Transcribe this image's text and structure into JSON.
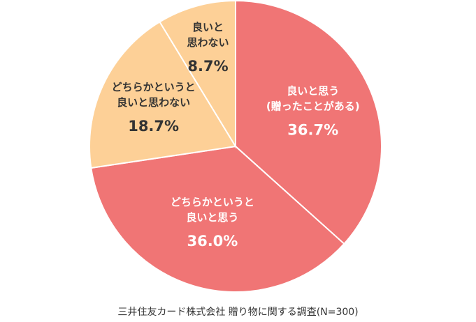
{
  "chart_data": {
    "type": "pie",
    "categories": [
      "良いと思う\n(贈ったことがある)",
      "どちらかというと\n良いと思う",
      "どちらかというと\n良いと思わない",
      "良いと\n思わない"
    ],
    "values": [
      36.7,
      36.0,
      18.7,
      8.7
    ],
    "value_labels": [
      "36.7%",
      "36.0%",
      "18.7%",
      "8.7%"
    ],
    "colors": [
      "#f07575",
      "#f07575",
      "#fdd097",
      "#fdd097"
    ],
    "label_colors": [
      "#ffffff",
      "#ffffff",
      "#333333",
      "#333333"
    ],
    "source": "三井住友カード株式会社 贈り物に関する調査(N=300)"
  }
}
